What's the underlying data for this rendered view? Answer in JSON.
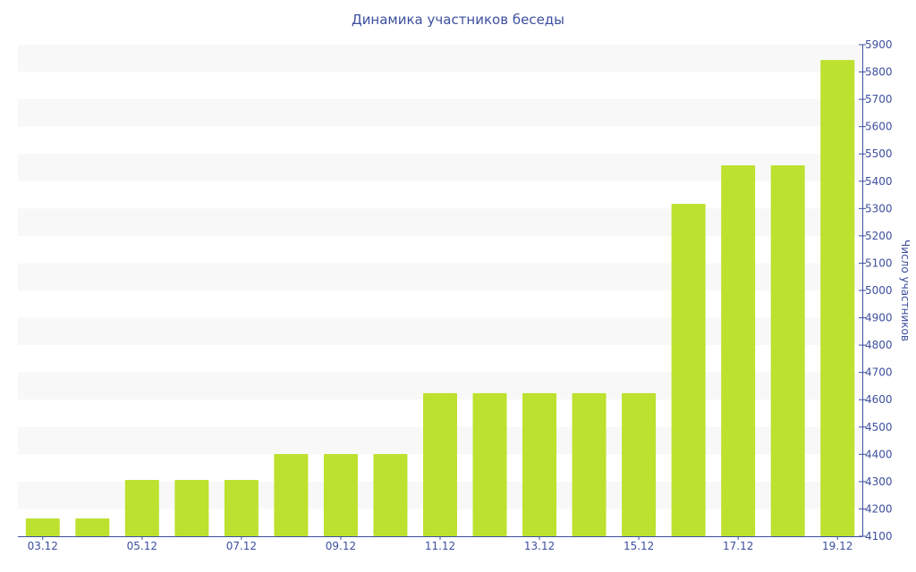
{
  "chart_data": {
    "type": "bar",
    "title": "Динамика участников беседы",
    "xlabel": "",
    "ylabel": "Число участников",
    "ylim": [
      4100,
      5900
    ],
    "ytick_step": 100,
    "yaxis_position": "right",
    "grid": "alternating horizontal bands",
    "categories": [
      "03.12",
      "04.12",
      "05.12",
      "06.12",
      "07.12",
      "08.12",
      "09.12",
      "10.12",
      "11.12",
      "12.12",
      "13.12",
      "14.12",
      "15.12",
      "16.12",
      "17.12",
      "18.12",
      "19.12"
    ],
    "xtick_labels_shown": [
      "03.12",
      "05.12",
      "07.12",
      "09.12",
      "11.12",
      "13.12",
      "15.12",
      "17.12",
      "19.12"
    ],
    "values": [
      4165,
      4165,
      4306,
      4306,
      4306,
      4401,
      4401,
      4401,
      4624,
      4624,
      4624,
      4624,
      4624,
      5317,
      5458,
      5458,
      5844
    ],
    "colors": {
      "bar": "#bce12f",
      "axis": "#3d4f9f",
      "band": "#f8f8f8"
    }
  }
}
